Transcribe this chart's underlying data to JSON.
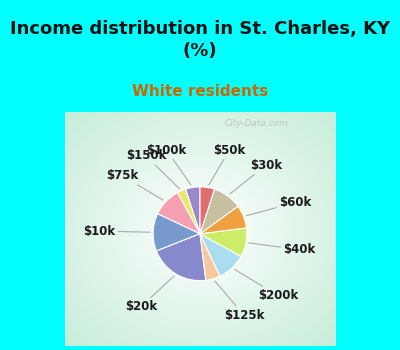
{
  "title": "Income distribution in St. Charles, KY\n(%)",
  "subtitle": "White residents",
  "title_color": "#111111",
  "subtitle_color": "#cc6600",
  "bg_cyan": "#00ffff",
  "watermark": "City-Data.com",
  "labels": [
    "$100k",
    "$150k",
    "$75k",
    "$10k",
    "$20k",
    "$125k",
    "$200k",
    "$40k",
    "$60k",
    "$30k",
    "$50k"
  ],
  "sizes": [
    5,
    3,
    10,
    13,
    21,
    5,
    10,
    10,
    8,
    10,
    5
  ],
  "colors": [
    "#9988cc",
    "#e8e866",
    "#f4a0b0",
    "#7799cc",
    "#8888cc",
    "#f5c8a0",
    "#aaddee",
    "#ccee66",
    "#f0a040",
    "#c8bea0",
    "#e07070"
  ],
  "startangle": 90,
  "label_fontsize": 8.5,
  "title_fontsize": 13,
  "subtitle_fontsize": 11
}
